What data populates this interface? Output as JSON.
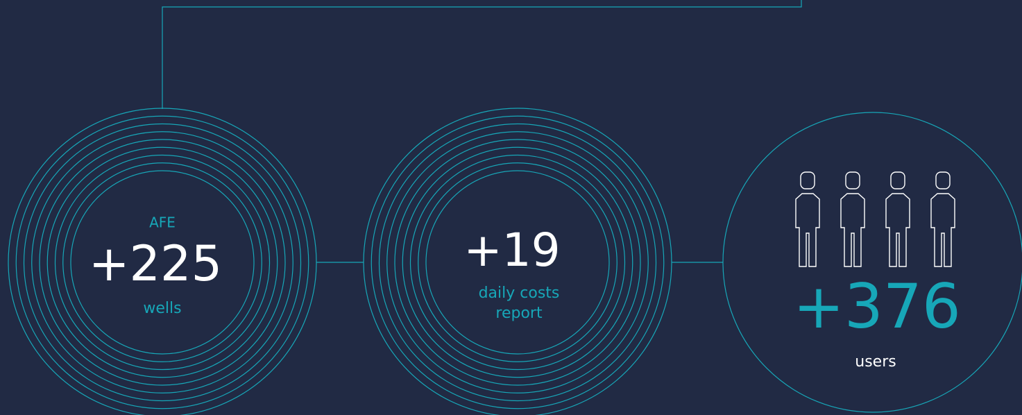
{
  "stats": [
    {
      "label": "AFE",
      "value": "+225",
      "unit": "wells"
    },
    {
      "value": "+19",
      "unit": [
        "daily costs",
        "report"
      ]
    },
    {
      "value": "+376",
      "unit": "users"
    }
  ]
}
